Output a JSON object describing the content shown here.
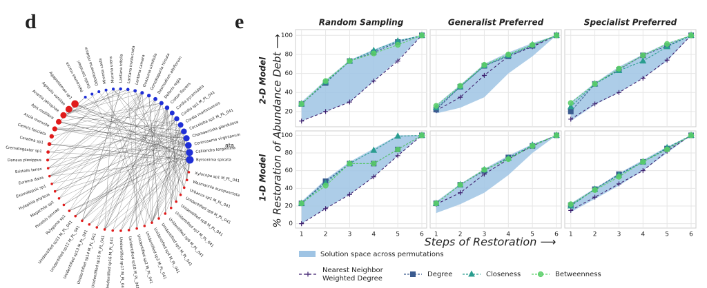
{
  "figure": {
    "panel_labels": [
      "d",
      "e"
    ],
    "ylabel": "% Restoration of Abundance Debt ⟶",
    "xlabel": "Steps of Restoration ⟶",
    "row_labels": [
      "2-D Model",
      "1-D Model"
    ],
    "band": {
      "name": "Solution space across permutations",
      "color": "#9fc4e4"
    },
    "series": [
      {
        "name": [
          "Nearest Neighbor",
          "Weighted Degree"
        ],
        "color": "#3d1f6e",
        "marker": "plus",
        "dash": "4,3"
      },
      {
        "name": "Degree",
        "color": "#3b5b8f",
        "marker": "square",
        "dash": "3,2"
      },
      {
        "name": "Closeness",
        "color": "#2a9d8f",
        "marker": "triangle",
        "dash": "3,2"
      },
      {
        "name": "Betweenness",
        "color": "#5ccf6a",
        "marker": "circle",
        "dash": "3,2"
      }
    ]
  },
  "network": {
    "fragment": "ata",
    "plant_color": "#1f2fd6",
    "animal_color": "#e01b1b",
    "plants": [
      "Palicourea crocea",
      "Oxalis barrelieri",
      "Odontonema nitidum",
      "Mimosa casta",
      "Mucuna urens",
      "Lantana trifolia",
      "Lantana involucrata",
      "Lantana camara",
      "Guazuma ulmifolia",
      "Gonzalagunia hirsuta",
      "Desmodium albiflorum",
      "Delonix regia",
      "Croton flavens",
      "Cordia pyramidata",
      "Cordia sp1 M_PL_041",
      "Cordia martinicensis",
      "Coccoloba sp1 M_PL_041",
      "Chamaecrista glandulosa",
      "Centrosema virginianum",
      "Calliandra tergemina",
      "Byrsonima spicata"
    ],
    "animals": [
      "Xylocopa sp1 M_PL_041",
      "Wasmannia auropunctata",
      "Urbanus sp1 M_PL_041",
      "Unidentified sp9 M_PL_041",
      "Unidentified sp8 M_PL_041",
      "Unidentified sp7 M_PL_041",
      "Unidentified sp6 M_PL_041",
      "Unidentified sp5 M_PL_041",
      "Unidentified sp4 M_PL_041",
      "Unidentified sp3 M_PL_041",
      "Unidentified sp2 M_PL_041",
      "Unidentified sp18 M_PL_041",
      "Unidentified sp17 M_PL_041",
      "Unidentified sp16 M_PL_041",
      "Unidentified sp15 M_PL_041",
      "Unidentified sp14 M_PL_041",
      "Unidentified sp13 M_PL_041",
      "Unidentified sp12 M_PL_041",
      "Unidentified sp11 M_PL_041",
      "Polygonia sp1",
      "Phoebis sennae",
      "Megachile sp1",
      "Hylephila phyleus",
      "Exomalopsis sp1",
      "Eurema daira",
      "Eristalis tenax",
      "Danaus plexippus",
      "Crematogaster sp1",
      "Ceratina sp1",
      "Centris fasciata",
      "Ascia monuste",
      "Apis mellifera",
      "Anartia jatrophae",
      "Agraulis vanillae",
      "Agapostemon sp1"
    ]
  },
  "chart_data": [
    {
      "type": "line",
      "title": "Random Sampling",
      "x": [
        1,
        2,
        3,
        4,
        5,
        6
      ],
      "xlim": [
        0.75,
        6.2
      ],
      "ylim": [
        4,
        106
      ],
      "xticks": [
        1,
        2,
        3,
        4,
        5,
        6
      ],
      "yticks": [
        20,
        40,
        60,
        80,
        100
      ],
      "grid": true,
      "band": {
        "lower": [
          10,
          20,
          30,
          52,
          74,
          100
        ],
        "upper": [
          30,
          53,
          74,
          85,
          95,
          100
        ]
      },
      "series": [
        {
          "values": [
            10,
            20,
            30,
            52,
            73,
            100
          ]
        },
        {
          "values": [
            28,
            50,
            73,
            82,
            93,
            100
          ]
        },
        {
          "values": [
            28,
            51,
            73,
            84,
            94,
            100
          ]
        },
        {
          "values": [
            28,
            52,
            73,
            81,
            90,
            100
          ]
        }
      ]
    },
    {
      "type": "line",
      "title": "Generalist Preferred",
      "x": [
        1,
        2,
        3,
        4,
        5,
        6
      ],
      "xlim": [
        0.75,
        6.2
      ],
      "ylim": [
        4,
        106
      ],
      "xticks": [
        1,
        2,
        3,
        4,
        5,
        6
      ],
      "yticks": [
        20,
        40,
        60,
        80,
        100
      ],
      "grid": true,
      "band": {
        "lower": [
          18,
          24,
          35,
          60,
          78,
          100
        ],
        "upper": [
          27,
          48,
          70,
          82,
          92,
          100
        ]
      },
      "series": [
        {
          "values": [
            21,
            35,
            58,
            78,
            88,
            100
          ]
        },
        {
          "values": [
            22,
            46,
            68,
            78,
            89,
            100
          ]
        },
        {
          "values": [
            24,
            46,
            68,
            79,
            90,
            100
          ]
        },
        {
          "values": [
            26,
            47,
            69,
            80,
            90,
            100
          ]
        }
      ]
    },
    {
      "type": "line",
      "title": "Specialist Preferred",
      "x": [
        1,
        2,
        3,
        4,
        5,
        6
      ],
      "xlim": [
        0.75,
        6.2
      ],
      "ylim": [
        4,
        106
      ],
      "xticks": [
        1,
        2,
        3,
        4,
        5,
        6
      ],
      "yticks": [
        20,
        40,
        60,
        80,
        100
      ],
      "grid": true,
      "band": {
        "lower": [
          10,
          27,
          40,
          55,
          73,
          100
        ],
        "upper": [
          30,
          50,
          67,
          80,
          92,
          100
        ]
      },
      "series": [
        {
          "values": [
            12,
            28,
            40,
            55,
            74,
            100
          ]
        },
        {
          "values": [
            20,
            49,
            64,
            79,
            89,
            100
          ]
        },
        {
          "values": [
            25,
            49,
            63,
            73,
            88,
            100
          ]
        },
        {
          "values": [
            29,
            49,
            65,
            79,
            91,
            100
          ]
        }
      ]
    },
    {
      "type": "line",
      "x": [
        1,
        2,
        3,
        4,
        5,
        6
      ],
      "xlim": [
        0.75,
        6.2
      ],
      "ylim": [
        -5,
        105
      ],
      "xticks": [
        1,
        2,
        3,
        4,
        5,
        6
      ],
      "yticks": [
        0,
        20,
        40,
        60,
        80,
        100
      ],
      "grid": true,
      "band": {
        "lower": [
          0,
          17,
          33,
          53,
          77,
          100
        ],
        "upper": [
          25,
          50,
          70,
          85,
          100,
          100
        ]
      },
      "series": [
        {
          "values": [
            0,
            17,
            33,
            53,
            77,
            100
          ]
        },
        {
          "values": [
            23,
            48,
            68,
            68,
            84,
            100
          ]
        },
        {
          "values": [
            23,
            46,
            68,
            83,
            99,
            100
          ]
        },
        {
          "values": [
            23,
            43,
            68,
            68,
            84,
            100
          ]
        }
      ]
    },
    {
      "type": "line",
      "x": [
        1,
        2,
        3,
        4,
        5,
        6
      ],
      "xlim": [
        0.75,
        6.2
      ],
      "ylim": [
        -5,
        105
      ],
      "xticks": [
        1,
        2,
        3,
        4,
        5,
        6
      ],
      "yticks": [
        0,
        20,
        40,
        60,
        80,
        100
      ],
      "grid": true,
      "band": {
        "lower": [
          12,
          22,
          35,
          55,
          80,
          100
        ],
        "upper": [
          25,
          45,
          62,
          77,
          90,
          100
        ]
      },
      "series": [
        {
          "values": [
            22,
            35,
            56,
            73,
            88,
            100
          ]
        },
        {
          "values": [
            23,
            44,
            60,
            75,
            88,
            100
          ]
        },
        {
          "values": [
            23,
            44,
            61,
            74,
            89,
            100
          ]
        },
        {
          "values": [
            23,
            44,
            61,
            73,
            88,
            100
          ]
        }
      ]
    },
    {
      "type": "line",
      "x": [
        1,
        2,
        3,
        4,
        5,
        6
      ],
      "xlim": [
        0.75,
        6.2
      ],
      "ylim": [
        -5,
        105
      ],
      "xticks": [
        1,
        2,
        3,
        4,
        5,
        6
      ],
      "yticks": [
        0,
        20,
        40,
        60,
        80,
        100
      ],
      "grid": true,
      "band": {
        "lower": [
          13,
          28,
          43,
          60,
          80,
          100
        ],
        "upper": [
          23,
          40,
          57,
          72,
          87,
          100
        ]
      },
      "series": [
        {
          "values": [
            15,
            30,
            45,
            60,
            82,
            100
          ]
        },
        {
          "values": [
            21,
            39,
            56,
            70,
            85,
            100
          ]
        },
        {
          "values": [
            20,
            39,
            55,
            70,
            86,
            100
          ]
        },
        {
          "values": [
            22,
            38,
            53,
            70,
            84,
            100
          ]
        }
      ]
    }
  ]
}
